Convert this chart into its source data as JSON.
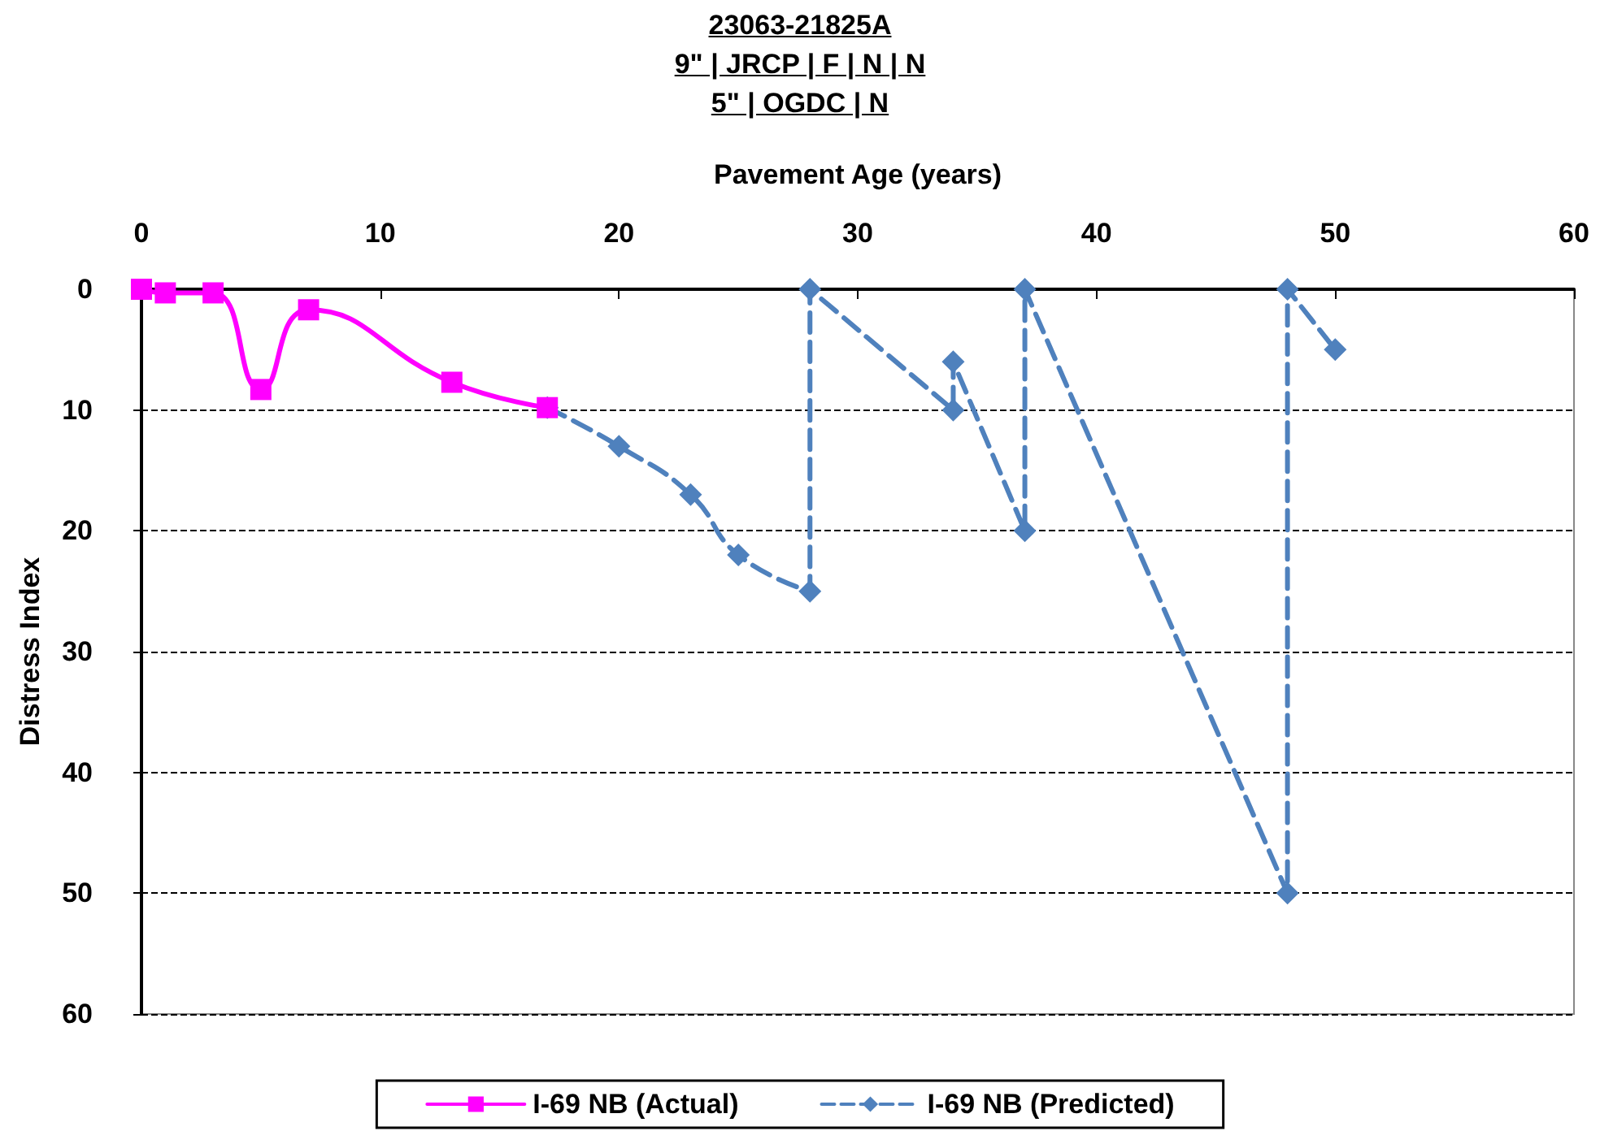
{
  "chart_data": {
    "type": "line",
    "title": "23063-21825A",
    "subtitle": "9\" | JRCP | F | N | N\n5\" | OGDC | N",
    "xlabel": "Pavement Age (years)",
    "ylabel": "Distress Index",
    "xlim": [
      0,
      60
    ],
    "xticks": [
      0,
      10,
      20,
      30,
      40,
      50,
      60
    ],
    "ylim": [
      60,
      0
    ],
    "yticks": [
      0,
      10,
      20,
      30,
      40,
      50,
      60
    ],
    "grid": "y",
    "legend": "bottom",
    "series": [
      {
        "name": "I-69 NB (Actual)",
        "color": "#ff00ff",
        "marker": "square",
        "line_style": "solid",
        "x": [
          0,
          1,
          3,
          5,
          7,
          13,
          17
        ],
        "values": [
          0,
          0.3,
          0.3,
          8.3,
          1.7,
          7.7,
          9.8
        ]
      },
      {
        "name": "I-69 NB (Predicted)",
        "color": "#4f81bd",
        "marker": "diamond",
        "line_style": "dashed",
        "x": [
          17,
          20,
          23,
          25,
          28,
          28,
          34,
          34,
          37,
          37,
          48,
          48,
          50
        ],
        "values": [
          9.8,
          13,
          17,
          22,
          25,
          0,
          10,
          6,
          20,
          0,
          50,
          0,
          5
        ]
      }
    ]
  }
}
